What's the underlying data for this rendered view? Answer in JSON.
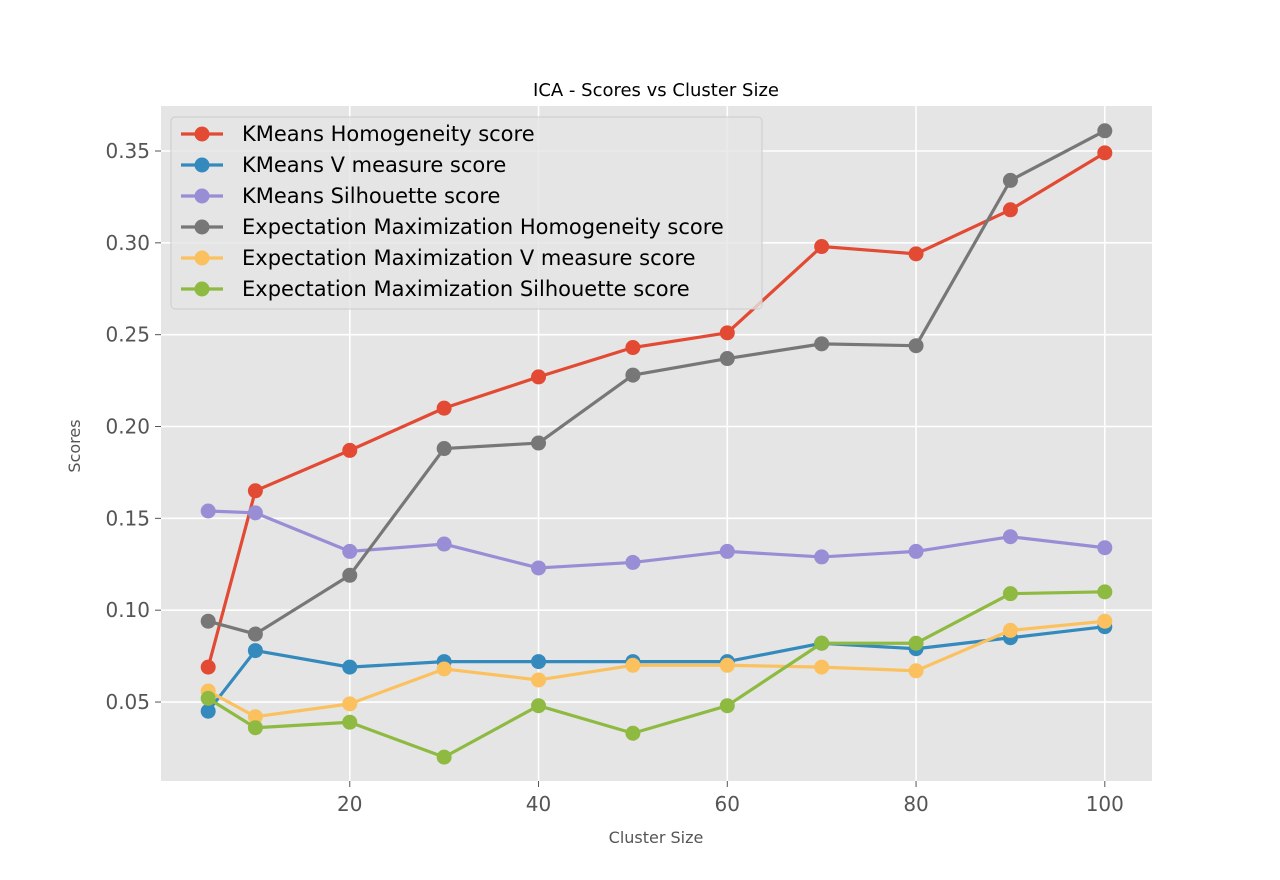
{
  "chart_data": {
    "type": "line",
    "title": "ICA - Scores vs Cluster Size",
    "xlabel": "Cluster Size",
    "ylabel": "Scores",
    "xlim": [
      0,
      105
    ],
    "ylim": [
      0.007,
      0.3745
    ],
    "xticks": [
      20,
      40,
      60,
      80,
      100
    ],
    "xtick_labels": [
      "20",
      "40",
      "60",
      "80",
      "100"
    ],
    "yticks": [
      0.05,
      0.1,
      0.15,
      0.2,
      0.25,
      0.3,
      0.35
    ],
    "ytick_labels": [
      "0.05",
      "0.10",
      "0.15",
      "0.20",
      "0.25",
      "0.30",
      "0.35"
    ],
    "grid": true,
    "legend": "top-left",
    "x": [
      5,
      10,
      20,
      30,
      40,
      50,
      60,
      70,
      80,
      90,
      100
    ],
    "series": [
      {
        "name": "KMeans Homogeneity score",
        "color": "#E24A33",
        "values": [
          0.069,
          0.165,
          0.187,
          0.21,
          0.227,
          0.243,
          0.251,
          0.298,
          0.294,
          0.318,
          0.349
        ]
      },
      {
        "name": "KMeans V measure score",
        "color": "#348ABD",
        "values": [
          0.045,
          0.078,
          0.069,
          0.072,
          0.072,
          0.072,
          0.072,
          0.082,
          0.079,
          0.085,
          0.091
        ]
      },
      {
        "name": "KMeans Silhouette score",
        "color": "#988ED5",
        "values": [
          0.154,
          0.153,
          0.132,
          0.136,
          0.123,
          0.126,
          0.132,
          0.129,
          0.132,
          0.14,
          0.134
        ]
      },
      {
        "name": "Expectation Maximization Homogeneity score",
        "color": "#777777",
        "values": [
          0.094,
          0.087,
          0.119,
          0.188,
          0.191,
          0.228,
          0.237,
          0.245,
          0.244,
          0.334,
          0.361
        ]
      },
      {
        "name": "Expectation Maximization V measure score",
        "color": "#FBC15E",
        "values": [
          0.056,
          0.042,
          0.049,
          0.068,
          0.062,
          0.07,
          0.07,
          0.069,
          0.067,
          0.089,
          0.094
        ]
      },
      {
        "name": "Expectation Maximization Silhouette score",
        "color": "#8EBA42",
        "values": [
          0.052,
          0.036,
          0.039,
          0.02,
          0.048,
          0.033,
          0.048,
          0.082,
          0.082,
          0.109,
          0.11
        ]
      }
    ]
  }
}
